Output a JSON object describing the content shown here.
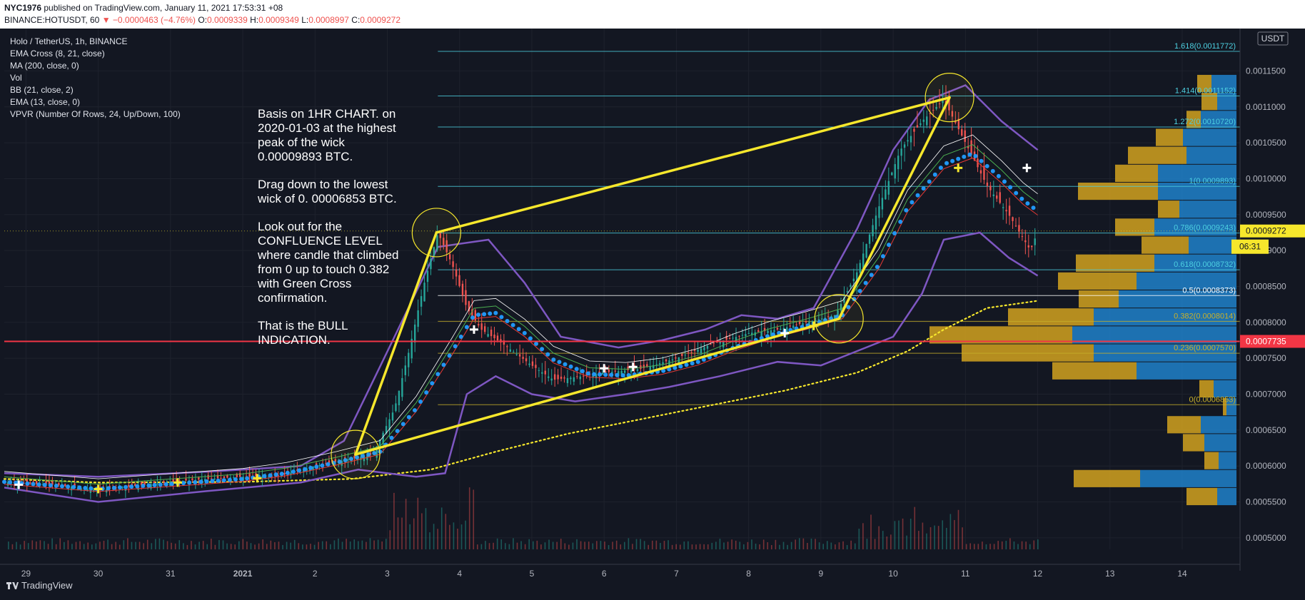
{
  "header": {
    "author": "NYC1976",
    "published": "published on TradingView.com, January 11, 2021 17:53:31 +08",
    "symbol": "BINANCE:HOTUSDT, 60",
    "change": "▼ −0.0000463 (−4.76%)",
    "o_label": "O:",
    "o_value": "0.0009339",
    "h_label": "H:",
    "h_value": "0.0009349",
    "l_label": "L:",
    "l_value": "0.0008997",
    "c_label": "C:",
    "c_value": "0.0009272",
    "last": "0.0009272"
  },
  "legend": [
    "Holo / TetherUS, 1h, BINANCE",
    "EMA Cross (8, 21, close)",
    "MA (200, close, 0)",
    "Vol",
    "BB (21, close, 2)",
    "EMA (13, close, 0)",
    "VPVR (Number Of Rows, 24, Up/Down, 100)"
  ],
  "annotation": [
    "Basis on 1HR CHART. on 2020-01-03 at the highest peak of the wick 0.00009893 BTC.",
    "Drag down to the lowest wick of 0. 00006853 BTC.",
    "Look out for the CONFLUENCE LEVEL where candle that climbed from 0 up to touch 0.382 with Green Cross confirmation.",
    "That is the BULL INDICATION."
  ],
  "footer": {
    "brand": "TradingView"
  },
  "colors": {
    "background": "#131722",
    "up": "#26a69a",
    "down": "#ef5350",
    "trendline": "#f6e72c",
    "bollinger": "#7e57c2",
    "ema13": "#2196f3",
    "ma200": "#f6e72c",
    "fib": "#4dd0e1",
    "redline": "#f23645",
    "vp_up": "#1f7bc1",
    "vp_down": "#c89a1f"
  },
  "chart_data": {
    "type": "candlestick",
    "currency": "USDT",
    "timeframe": "1h",
    "x_ticks": [
      "29",
      "30",
      "31",
      "2021",
      "2",
      "3",
      "4",
      "5",
      "6",
      "7",
      "8",
      "9",
      "10",
      "11",
      "12",
      "13",
      "14"
    ],
    "y_ticks": [
      "0.0011500",
      "0.0011000",
      "0.0010500",
      "0.0010000",
      "0.0009500",
      "0.0009000",
      "0.0008500",
      "0.0008000",
      "0.0007500",
      "0.0007000",
      "0.0006500",
      "0.0006000",
      "0.0005500",
      "0.0005000"
    ],
    "y_tick_values": [
      0.00115,
      0.0011,
      0.00105,
      0.001,
      0.00095,
      0.0009,
      0.00085,
      0.0008,
      0.00075,
      0.0007,
      0.00065,
      0.0006,
      0.00055,
      0.0005
    ],
    "ylim": [
      0.000484,
      0.001209
    ],
    "xlim": [
      -0.3,
      16.8
    ],
    "x_tick_positions": [
      0,
      1,
      2,
      3,
      4,
      5,
      6,
      7,
      8,
      9,
      10,
      11,
      12,
      13,
      14,
      15,
      16
    ],
    "price_path": [
      [
        -0.3,
        0.000578
      ],
      [
        0.5,
        0.000573
      ],
      [
        1.0,
        0.000566
      ],
      [
        1.5,
        0.000572
      ],
      [
        2.0,
        0.000578
      ],
      [
        2.5,
        0.000582
      ],
      [
        3.0,
        0.000585
      ],
      [
        3.5,
        0.000586
      ],
      [
        4.0,
        0.0006
      ],
      [
        4.5,
        0.00061
      ],
      [
        4.8,
        0.000616
      ],
      [
        5.1,
        0.00068
      ],
      [
        5.3,
        0.00076
      ],
      [
        5.5,
        0.00085
      ],
      [
        5.7,
        0.000925
      ],
      [
        5.9,
        0.00088
      ],
      [
        6.1,
        0.00082
      ],
      [
        6.3,
        0.00079
      ],
      [
        6.6,
        0.00077
      ],
      [
        7.0,
        0.00074
      ],
      [
        7.3,
        0.00072
      ],
      [
        7.7,
        0.000725
      ],
      [
        8.0,
        0.00073
      ],
      [
        8.5,
        0.000735
      ],
      [
        9.0,
        0.00075
      ],
      [
        9.5,
        0.00077
      ],
      [
        10.0,
        0.000785
      ],
      [
        10.4,
        0.00079
      ],
      [
        10.8,
        0.0008
      ],
      [
        11.2,
        0.00081
      ],
      [
        11.5,
        0.00087
      ],
      [
        11.8,
        0.00096
      ],
      [
        12.1,
        0.00104
      ],
      [
        12.4,
        0.00108
      ],
      [
        12.7,
        0.00111
      ],
      [
        13.0,
        0.00105
      ],
      [
        13.3,
        0.00099
      ],
      [
        13.6,
        0.00095
      ],
      [
        13.9,
        0.0009
      ],
      [
        14.0,
        0.000927
      ]
    ],
    "bollinger_upper": [
      [
        -0.3,
        0.00059
      ],
      [
        1.0,
        0.000585
      ],
      [
        2.5,
        0.000592
      ],
      [
        3.8,
        0.0006
      ],
      [
        4.4,
        0.000635
      ],
      [
        5.1,
        0.00078
      ],
      [
        5.7,
        0.000905
      ],
      [
        6.4,
        0.000915
      ],
      [
        6.9,
        0.000855
      ],
      [
        7.4,
        0.00078
      ],
      [
        8.2,
        0.000765
      ],
      [
        8.8,
        0.000775
      ],
      [
        9.4,
        0.00079
      ],
      [
        9.9,
        0.00081
      ],
      [
        10.4,
        0.000805
      ],
      [
        10.9,
        0.00082
      ],
      [
        11.5,
        0.00093
      ],
      [
        12.0,
        0.00104
      ],
      [
        12.5,
        0.00111
      ],
      [
        13.0,
        0.00113
      ],
      [
        13.5,
        0.00108
      ],
      [
        14.0,
        0.00104
      ]
    ],
    "bollinger_lower": [
      [
        -0.3,
        0.00057
      ],
      [
        1.0,
        0.00055
      ],
      [
        2.5,
        0.000565
      ],
      [
        3.8,
        0.000577
      ],
      [
        4.6,
        0.000595
      ],
      [
        5.4,
        0.000585
      ],
      [
        5.8,
        0.00059
      ],
      [
        6.1,
        0.0007
      ],
      [
        6.5,
        0.000725
      ],
      [
        7.0,
        0.0007
      ],
      [
        7.6,
        0.00069
      ],
      [
        8.3,
        0.0007
      ],
      [
        8.9,
        0.00071
      ],
      [
        9.6,
        0.000725
      ],
      [
        10.4,
        0.000745
      ],
      [
        11.0,
        0.00074
      ],
      [
        11.5,
        0.00076
      ],
      [
        12.0,
        0.00078
      ],
      [
        12.4,
        0.00084
      ],
      [
        12.7,
        0.000915
      ],
      [
        13.2,
        0.000925
      ],
      [
        13.6,
        0.00089
      ],
      [
        14.0,
        0.000865
      ]
    ],
    "ema13": [
      [
        -0.3,
        0.000578
      ],
      [
        1.0,
        0.000568
      ],
      [
        2.0,
        0.000575
      ],
      [
        3.0,
        0.000582
      ],
      [
        3.6,
        0.00059
      ],
      [
        4.3,
        0.000605
      ],
      [
        4.9,
        0.00062
      ],
      [
        5.4,
        0.00068
      ],
      [
        5.9,
        0.00076
      ],
      [
        6.2,
        0.00081
      ],
      [
        6.5,
        0.000813
      ],
      [
        6.9,
        0.000785
      ],
      [
        7.3,
        0.000748
      ],
      [
        7.8,
        0.000728
      ],
      [
        8.3,
        0.000726
      ],
      [
        8.8,
        0.000732
      ],
      [
        9.3,
        0.000745
      ],
      [
        9.8,
        0.000765
      ],
      [
        10.3,
        0.000782
      ],
      [
        10.8,
        0.000795
      ],
      [
        11.3,
        0.00081
      ],
      [
        11.8,
        0.00088
      ],
      [
        12.2,
        0.00096
      ],
      [
        12.7,
        0.00102
      ],
      [
        13.1,
        0.001035
      ],
      [
        13.5,
        0.001
      ],
      [
        13.8,
        0.00097
      ],
      [
        14.0,
        0.000955
      ]
    ],
    "ma200": [
      [
        -0.3,
        0.000582
      ],
      [
        1.0,
        0.000577
      ],
      [
        3.0,
        0.000578
      ],
      [
        4.5,
        0.000582
      ],
      [
        5.6,
        0.000595
      ],
      [
        6.5,
        0.00062
      ],
      [
        7.5,
        0.000645
      ],
      [
        8.5,
        0.000665
      ],
      [
        9.5,
        0.000685
      ],
      [
        10.5,
        0.000705
      ],
      [
        11.5,
        0.00073
      ],
      [
        12.2,
        0.00076
      ],
      [
        12.7,
        0.00079
      ],
      [
        13.3,
        0.00082
      ],
      [
        14.0,
        0.00083
      ]
    ],
    "trendlines": [
      [
        [
          4.56,
          0.000616
        ],
        [
          5.68,
          0.000925
        ]
      ],
      [
        [
          5.68,
          0.000925
        ],
        [
          12.78,
          0.001113
        ]
      ],
      [
        [
          4.56,
          0.000616
        ],
        [
          11.25,
          0.000805
        ]
      ],
      [
        [
          11.25,
          0.000805
        ],
        [
          12.78,
          0.001113
        ]
      ]
    ],
    "highlight_circles": [
      [
        4.56,
        0.000616
      ],
      [
        5.68,
        0.000925
      ],
      [
        11.25,
        0.000805
      ],
      [
        12.78,
        0.001113
      ]
    ],
    "fib_levels": [
      {
        "ratio": "1.618",
        "price": 0.0011772,
        "label": "1.618(0.0011772)"
      },
      {
        "ratio": "1.414",
        "price": 0.0011152,
        "label": "1.414(0.0011152)"
      },
      {
        "ratio": "1.272",
        "price": 0.001072,
        "label": "1.272(0.0010720)"
      },
      {
        "ratio": "1",
        "price": 0.0009893,
        "label": "1(0.0009893)"
      },
      {
        "ratio": "0.786",
        "price": 0.0009243,
        "label": "0.786(0.0009243)"
      },
      {
        "ratio": "0.618",
        "price": 0.0008732,
        "label": "0.618(0.0008732)"
      },
      {
        "ratio": "0.5",
        "price": 0.0008373,
        "label": "0.5(0.0008373)"
      },
      {
        "ratio": "0.382",
        "price": 0.0008014,
        "label": "0.382(0.0008014)"
      },
      {
        "ratio": "0.236",
        "price": 0.000757,
        "label": "0.236(0.0007570)"
      },
      {
        "ratio": "0",
        "price": 0.0006853,
        "label": "0(0.0006853)"
      }
    ],
    "horizontal_line": {
      "price": 0.0007735,
      "label": "0.0007735"
    },
    "last_price_label": "0.0009272",
    "countdown_label": "06:31",
    "green_crosses": [
      [
        1.0,
        0.000568
      ],
      [
        2.1,
        0.000577
      ],
      [
        3.2,
        0.000583
      ],
      [
        10.9,
        0.000795
      ],
      [
        12.9,
        0.001015
      ]
    ],
    "white_crosses": [
      [
        -0.1,
        0.000574
      ],
      [
        6.2,
        0.00079
      ],
      [
        8.0,
        0.000736
      ],
      [
        8.4,
        0.000738
      ],
      [
        10.5,
        0.000785
      ],
      [
        13.85,
        0.001015
      ]
    ],
    "volume_profile": [
      {
        "price": 0.0011325,
        "up": 35,
        "down": 20
      },
      {
        "price": 0.0011075,
        "up": 27,
        "down": 22
      },
      {
        "price": 0.0010825,
        "up": 50,
        "down": 20
      },
      {
        "price": 0.0010575,
        "up": 75,
        "down": 38
      },
      {
        "price": 0.0010325,
        "up": 70,
        "down": 82
      },
      {
        "price": 0.0010075,
        "up": 110,
        "down": 60
      },
      {
        "price": 0.0009825,
        "up": 110,
        "down": 112
      },
      {
        "price": 0.0009575,
        "up": 80,
        "down": 30
      },
      {
        "price": 0.0009325,
        "up": 115,
        "down": 55
      },
      {
        "price": 0.0009075,
        "up": 67,
        "down": 66
      },
      {
        "price": 0.0008825,
        "up": 115,
        "down": 110
      },
      {
        "price": 0.0008575,
        "up": 140,
        "down": 110
      },
      {
        "price": 0.0008325,
        "up": 165,
        "down": 56
      },
      {
        "price": 0.0008075,
        "up": 200,
        "down": 120
      },
      {
        "price": 0.0007825,
        "up": 230,
        "down": 200
      },
      {
        "price": 0.0007575,
        "up": 200,
        "down": 185
      },
      {
        "price": 0.0007325,
        "up": 140,
        "down": 118
      },
      {
        "price": 0.0007075,
        "up": 32,
        "down": 20
      },
      {
        "price": 0.0006825,
        "up": 14,
        "down": 5
      },
      {
        "price": 0.0006575,
        "up": 50,
        "down": 47
      },
      {
        "price": 0.0006325,
        "up": 45,
        "down": 30
      },
      {
        "price": 0.0006075,
        "up": 25,
        "down": 20
      },
      {
        "price": 0.0005825,
        "up": 135,
        "down": 93
      },
      {
        "price": 0.0005575,
        "up": 27,
        "down": 43
      }
    ]
  }
}
